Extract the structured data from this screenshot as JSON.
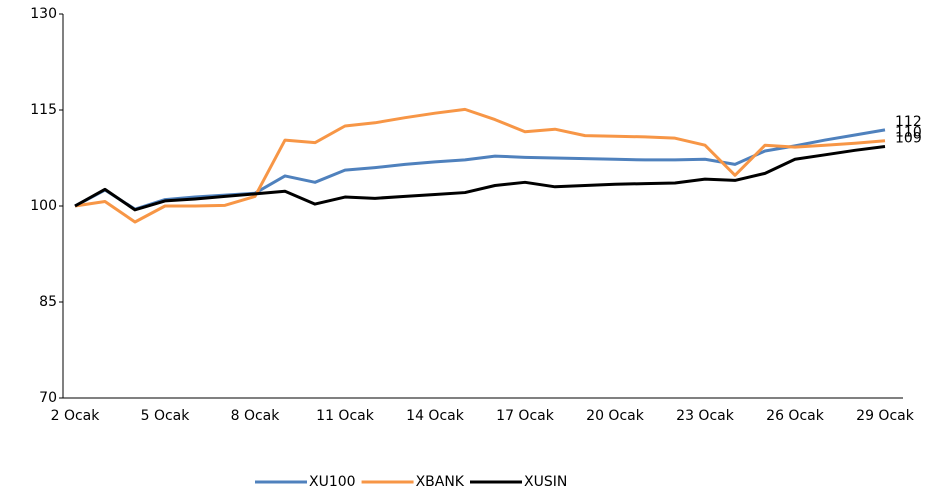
{
  "chart_data": {
    "type": "line",
    "categories": [
      "2 Ocak",
      null,
      null,
      "5 Ocak",
      null,
      null,
      "8 Ocak",
      null,
      null,
      "11 Ocak",
      null,
      null,
      "14 Ocak",
      null,
      null,
      "17 Ocak",
      null,
      null,
      "20 Ocak",
      null,
      null,
      "23 Ocak",
      null,
      null,
      "26 Ocak",
      null,
      null,
      "29 Ocak"
    ],
    "series": [
      {
        "name": "XU100",
        "color": "#4f81bd",
        "values": [
          100,
          102.5,
          99.5,
          101,
          101.4,
          101.7,
          102,
          104.7,
          103.7,
          105.6,
          106,
          106.5,
          106.9,
          107.2,
          107.8,
          107.6,
          107.5,
          107.4,
          107.3,
          107.2,
          107.2,
          107.3,
          106.5,
          108.6,
          109.4,
          110.3,
          111.1,
          111.9
        ],
        "value_labels": [
          null,
          null,
          null,
          null,
          null,
          null,
          null,
          null,
          null,
          null,
          null,
          null,
          null,
          null,
          null,
          null,
          null,
          null,
          null,
          null,
          null,
          null,
          null,
          null,
          null,
          null,
          null,
          "112"
        ]
      },
      {
        "name": "XBANK",
        "color": "#f79646",
        "values": [
          100,
          100.7,
          97.5,
          100,
          100,
          100.1,
          101.5,
          110.3,
          109.9,
          112.5,
          113,
          113.8,
          114.5,
          115.1,
          113.5,
          111.6,
          112,
          111,
          110.9,
          110.8,
          110.6,
          109.5,
          104.8,
          109.5,
          109.2,
          109.5,
          109.8,
          110.2
        ],
        "value_labels": [
          null,
          null,
          null,
          null,
          null,
          null,
          null,
          null,
          null,
          null,
          null,
          null,
          null,
          null,
          null,
          null,
          null,
          null,
          null,
          null,
          null,
          null,
          null,
          null,
          null,
          null,
          null,
          "110"
        ]
      },
      {
        "name": "XUSIN",
        "color": "#000000",
        "values": [
          100,
          102.6,
          99.4,
          100.8,
          101.1,
          101.5,
          101.9,
          102.3,
          100.3,
          101.4,
          101.2,
          101.5,
          101.8,
          102.1,
          103.2,
          103.7,
          103,
          103.2,
          103.4,
          103.5,
          103.6,
          104.2,
          104,
          105.1,
          107.3,
          108,
          108.7,
          109.3
        ],
        "value_labels": [
          null,
          null,
          null,
          null,
          null,
          null,
          null,
          null,
          null,
          null,
          null,
          null,
          null,
          null,
          null,
          null,
          null,
          null,
          null,
          null,
          null,
          null,
          null,
          null,
          null,
          null,
          null,
          "109"
        ]
      }
    ],
    "ylim": [
      70,
      130
    ],
    "yticks": [
      70,
      85,
      100,
      115,
      130
    ],
    "legend": "bottom"
  }
}
